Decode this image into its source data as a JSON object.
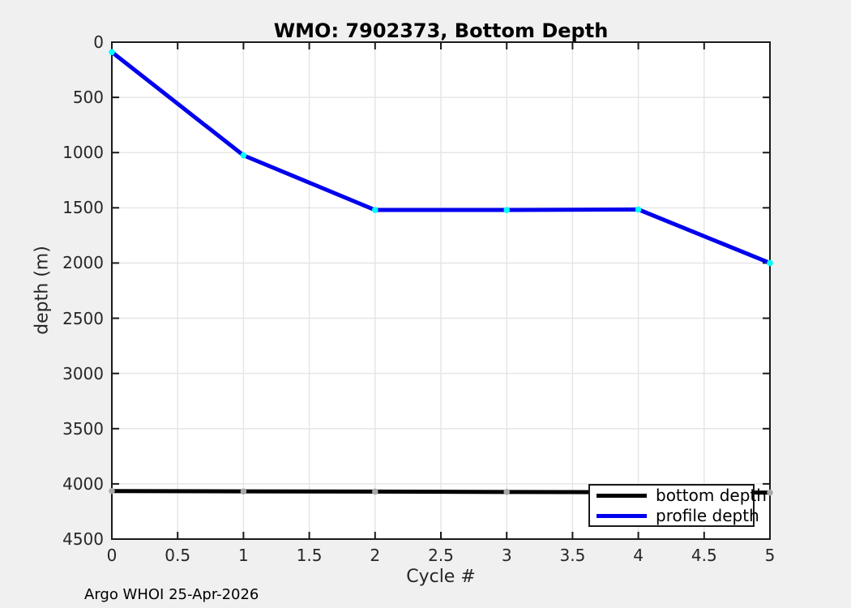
{
  "figure": {
    "footer": "Argo WHOI 25-Apr-2026",
    "background_color": "#f0f0f0",
    "plot_background_color": "#ffffff",
    "grid_color": "#e6e6e6",
    "axis_color": "#1a1a1a",
    "tick_label_color": "#262626"
  },
  "chart_data": {
    "type": "line",
    "title": "WMO: 7902373, Bottom Depth",
    "xlabel": "Cycle #",
    "ylabel": "depth (m)",
    "x": [
      0,
      1,
      2,
      3,
      4,
      5
    ],
    "series": [
      {
        "name": "bottom depth",
        "color": "#000000",
        "marker": "circle",
        "marker_color": "#a9a9a9",
        "values": [
          4065,
          4068,
          4070,
          4073,
          4076,
          4079
        ]
      },
      {
        "name": "profile depth",
        "color": "#0000ee",
        "marker": "circle",
        "marker_color": "#00ffff",
        "values": [
          90,
          1025,
          1520,
          1520,
          1515,
          2000
        ]
      }
    ],
    "xlim": [
      0,
      5
    ],
    "ylim": [
      0,
      4500
    ],
    "y_axis_direction": "reversed (0 at top, depth increases downward)",
    "xticks": [
      0,
      0.5,
      1,
      1.5,
      2,
      2.5,
      3,
      3.5,
      4,
      4.5,
      5
    ],
    "yticks": [
      0,
      500,
      1000,
      1500,
      2000,
      2500,
      3000,
      3500,
      4000,
      4500
    ],
    "grid": true,
    "legend": {
      "position": "inside-bottom-right",
      "entries": [
        "bottom depth",
        "profile depth"
      ]
    }
  }
}
